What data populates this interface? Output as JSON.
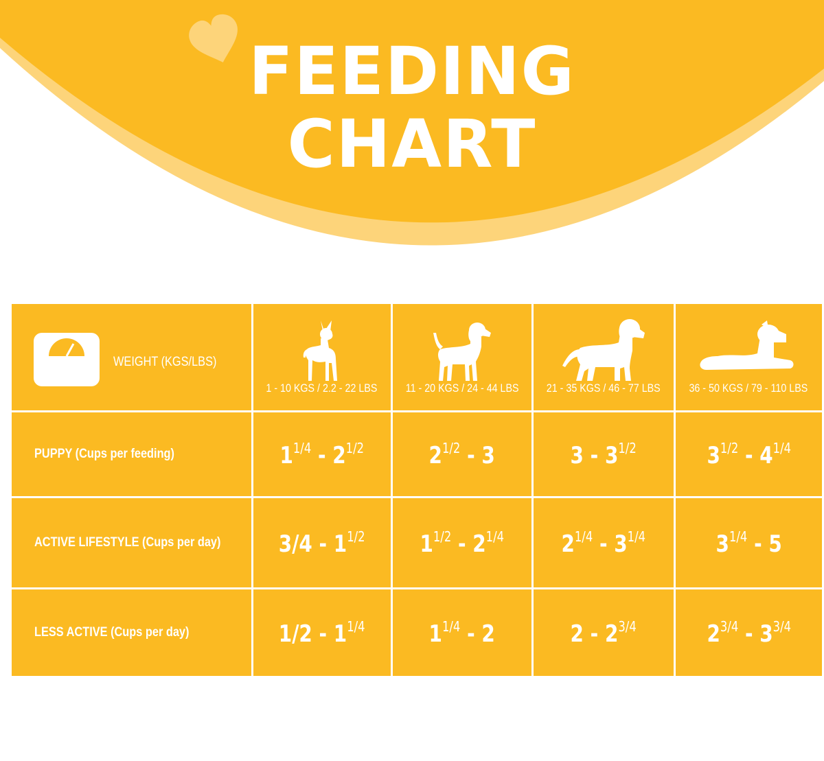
{
  "title": {
    "line1": "FEEDING",
    "line2": "CHART"
  },
  "colors": {
    "primary": "#fbba22",
    "light_arc": "#fdd47a",
    "heart": "#fdd47a",
    "text": "#ffffff"
  },
  "table": {
    "header": {
      "weight_icon": "scale-icon",
      "weight_label": "WEIGHT (KGS/LBS)",
      "columns": [
        {
          "icon": "small-dog-icon",
          "range": "1 - 10 KGS / 2.2 - 22 LBS"
        },
        {
          "icon": "medium-dog-icon",
          "range": "11 - 20 KGS / 24 - 44 LBS"
        },
        {
          "icon": "large-dog-icon",
          "range": "21 - 35 KGS / 46 - 77 LBS"
        },
        {
          "icon": "giant-dog-lying-icon",
          "range": "36 - 50 KGS / 79 - 110 LBS"
        }
      ]
    },
    "rows": [
      {
        "label": "PUPPY (Cups per feeding)",
        "values": [
          {
            "a": "1",
            "a_frac": "1/4",
            "sep": " - ",
            "b": "2",
            "b_frac": "1/2"
          },
          {
            "a": "2",
            "a_frac": "1/2",
            "sep": " - ",
            "b": "3",
            "b_frac": ""
          },
          {
            "a": "3",
            "a_frac": "",
            "sep": " - ",
            "b": "3",
            "b_frac": "1/2"
          },
          {
            "a": "3",
            "a_frac": "1/2",
            "sep": " - ",
            "b": "4",
            "b_frac": "1/4"
          }
        ]
      },
      {
        "label": "ACTIVE LIFESTYLE (Cups per day)",
        "values": [
          {
            "a": "3/4",
            "a_frac": "",
            "sep": " - ",
            "b": "1",
            "b_frac": "1/2"
          },
          {
            "a": "1",
            "a_frac": "1/2",
            "sep": " - ",
            "b": "2",
            "b_frac": "1/4"
          },
          {
            "a": "2",
            "a_frac": "1/4",
            "sep": " - ",
            "b": "3",
            "b_frac": "1/4"
          },
          {
            "a": "3",
            "a_frac": "1/4",
            "sep": " - ",
            "b": "5",
            "b_frac": ""
          }
        ]
      },
      {
        "label": "LESS ACTIVE (Cups per day)",
        "values": [
          {
            "a": "1/2",
            "a_frac": "",
            "sep": " - ",
            "b": "1",
            "b_frac": "1/4"
          },
          {
            "a": "1",
            "a_frac": "1/4",
            "sep": " - ",
            "b": "2",
            "b_frac": ""
          },
          {
            "a": "2",
            "a_frac": "",
            "sep": " - ",
            "b": "2",
            "b_frac": "3/4"
          },
          {
            "a": "2",
            "a_frac": "3/4",
            "sep": " - ",
            "b": "3",
            "b_frac": "3/4"
          }
        ]
      }
    ]
  }
}
